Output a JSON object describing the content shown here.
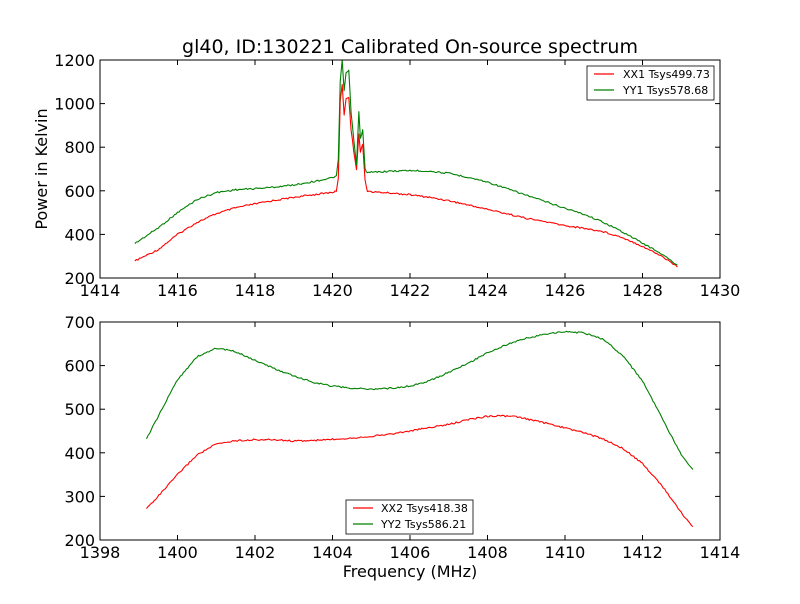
{
  "chart_data": [
    {
      "type": "line",
      "title": "gl40, ID:130221 Calibrated On-source spectrum",
      "xlabel": "",
      "ylabel": "Power in Kelvin",
      "xlim": [
        1414,
        1430
      ],
      "ylim": [
        200,
        1200
      ],
      "xticks": [
        "1414",
        "1416",
        "1418",
        "1420",
        "1422",
        "1424",
        "1426",
        "1428",
        "1430"
      ],
      "yticks": [
        "200",
        "400",
        "600",
        "800",
        "1000",
        "1200"
      ],
      "legend_position": "top-right",
      "series": [
        {
          "name": "XX1 Tsys499.73",
          "color": "#ff0000",
          "points": [
            [
              1414.9,
              278
            ],
            [
              1415.5,
              330
            ],
            [
              1416,
              400
            ],
            [
              1416.5,
              455
            ],
            [
              1417,
              495
            ],
            [
              1417.5,
              522
            ],
            [
              1418,
              540
            ],
            [
              1418.5,
              556
            ],
            [
              1419,
              570
            ],
            [
              1419.5,
              582
            ],
            [
              1420,
              593
            ],
            [
              1420.1,
              598
            ],
            [
              1420.15,
              660
            ],
            [
              1420.2,
              1010
            ],
            [
              1420.25,
              1090
            ],
            [
              1420.3,
              950
            ],
            [
              1420.35,
              1020
            ],
            [
              1420.42,
              1030
            ],
            [
              1420.48,
              880
            ],
            [
              1420.55,
              780
            ],
            [
              1420.62,
              700
            ],
            [
              1420.68,
              860
            ],
            [
              1420.72,
              780
            ],
            [
              1420.78,
              810
            ],
            [
              1420.84,
              650
            ],
            [
              1420.9,
              600
            ],
            [
              1421,
              595
            ],
            [
              1421.5,
              590
            ],
            [
              1422,
              582
            ],
            [
              1422.5,
              570
            ],
            [
              1423,
              555
            ],
            [
              1423.5,
              535
            ],
            [
              1424,
              515
            ],
            [
              1424.5,
              495
            ],
            [
              1425,
              474
            ],
            [
              1425.5,
              458
            ],
            [
              1426,
              440
            ],
            [
              1426.5,
              428
            ],
            [
              1427,
              412
            ],
            [
              1427.5,
              385
            ],
            [
              1428,
              345
            ],
            [
              1428.5,
              300
            ],
            [
              1428.9,
              252
            ]
          ]
        },
        {
          "name": "YY1 Tsys578.68",
          "color": "#008000",
          "points": [
            [
              1414.9,
              358
            ],
            [
              1415.5,
              430
            ],
            [
              1416,
              500
            ],
            [
              1416.5,
              560
            ],
            [
              1417,
              592
            ],
            [
              1417.5,
              605
            ],
            [
              1418,
              610
            ],
            [
              1418.5,
              617
            ],
            [
              1419,
              627
            ],
            [
              1419.5,
              642
            ],
            [
              1420,
              660
            ],
            [
              1420.1,
              668
            ],
            [
              1420.15,
              740
            ],
            [
              1420.2,
              1100
            ],
            [
              1420.25,
              1200
            ],
            [
              1420.3,
              1060
            ],
            [
              1420.35,
              1140
            ],
            [
              1420.42,
              1150
            ],
            [
              1420.48,
              960
            ],
            [
              1420.55,
              830
            ],
            [
              1420.62,
              720
            ],
            [
              1420.68,
              960
            ],
            [
              1420.72,
              840
            ],
            [
              1420.78,
              880
            ],
            [
              1420.84,
              700
            ],
            [
              1420.9,
              682
            ],
            [
              1421,
              685
            ],
            [
              1421.5,
              690
            ],
            [
              1422,
              693
            ],
            [
              1422.5,
              690
            ],
            [
              1423,
              680
            ],
            [
              1423.5,
              662
            ],
            [
              1424,
              640
            ],
            [
              1424.5,
              610
            ],
            [
              1425,
              580
            ],
            [
              1425.5,
              550
            ],
            [
              1426,
              520
            ],
            [
              1426.5,
              492
            ],
            [
              1427,
              455
            ],
            [
              1427.5,
              410
            ],
            [
              1428,
              360
            ],
            [
              1428.5,
              310
            ],
            [
              1428.9,
              258
            ]
          ]
        }
      ]
    },
    {
      "type": "line",
      "title": "",
      "xlabel": "Frequency (MHz)",
      "ylabel": "",
      "xlim": [
        1398,
        1414
      ],
      "ylim": [
        200,
        700
      ],
      "xticks": [
        "1398",
        "1400",
        "1402",
        "1404",
        "1406",
        "1408",
        "1410",
        "1412",
        "1414"
      ],
      "yticks": [
        "200",
        "300",
        "400",
        "500",
        "600",
        "700"
      ],
      "legend_position": "lower-center",
      "series": [
        {
          "name": "XX2 Tsys418.38",
          "color": "#ff0000",
          "points": [
            [
              1399.2,
              272
            ],
            [
              1399.6,
              310
            ],
            [
              1400,
              350
            ],
            [
              1400.5,
              395
            ],
            [
              1401,
              420
            ],
            [
              1401.5,
              428
            ],
            [
              1402,
              430
            ],
            [
              1402.5,
              430
            ],
            [
              1403,
              427
            ],
            [
              1403.5,
              428
            ],
            [
              1404,
              431
            ],
            [
              1404.5,
              434
            ],
            [
              1405,
              438
            ],
            [
              1405.5,
              443
            ],
            [
              1406,
              450
            ],
            [
              1406.5,
              458
            ],
            [
              1407,
              465
            ],
            [
              1407.5,
              476
            ],
            [
              1408,
              484
            ],
            [
              1408.3,
              485
            ],
            [
              1408.7,
              483
            ],
            [
              1409,
              478
            ],
            [
              1409.5,
              468
            ],
            [
              1410,
              457
            ],
            [
              1410.5,
              446
            ],
            [
              1411,
              431
            ],
            [
              1411.5,
              410
            ],
            [
              1412,
              375
            ],
            [
              1412.5,
              325
            ],
            [
              1413,
              263
            ],
            [
              1413.3,
              229
            ]
          ]
        },
        {
          "name": "YY2 Tsys586.21",
          "color": "#008000",
          "points": [
            [
              1399.2,
              432
            ],
            [
              1399.6,
              500
            ],
            [
              1400,
              568
            ],
            [
              1400.5,
              620
            ],
            [
              1401,
              640
            ],
            [
              1401.5,
              632
            ],
            [
              1402,
              612
            ],
            [
              1402.5,
              593
            ],
            [
              1403,
              576
            ],
            [
              1403.5,
              562
            ],
            [
              1404,
              553
            ],
            [
              1404.5,
              548
            ],
            [
              1405,
              546
            ],
            [
              1405.5,
              548
            ],
            [
              1406,
              553
            ],
            [
              1406.5,
              565
            ],
            [
              1407,
              585
            ],
            [
              1407.5,
              605
            ],
            [
              1408,
              630
            ],
            [
              1408.5,
              648
            ],
            [
              1409,
              663
            ],
            [
              1409.5,
              672
            ],
            [
              1410,
              678
            ],
            [
              1410.5,
              675
            ],
            [
              1411,
              660
            ],
            [
              1411.5,
              622
            ],
            [
              1412,
              565
            ],
            [
              1412.5,
              480
            ],
            [
              1413,
              395
            ],
            [
              1413.3,
              360
            ]
          ]
        }
      ]
    }
  ]
}
